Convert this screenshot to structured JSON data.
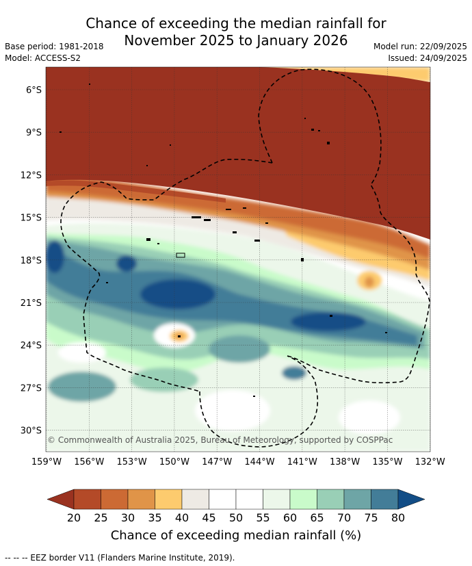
{
  "title": {
    "line1": "Chance of exceeding the median rainfall for",
    "line2": "November 2025 to January 2026"
  },
  "meta": {
    "base_period": "Base period: 1981-2018",
    "model": "Model: ACCESS-S2",
    "model_run": "Model run: 22/09/2025",
    "issued": "Issued: 24/09/2025"
  },
  "map": {
    "lat_labels": [
      "6°S",
      "9°S",
      "12°S",
      "15°S",
      "18°S",
      "21°S",
      "24°S",
      "27°S",
      "30°S"
    ],
    "lon_labels": [
      "159°W",
      "156°W",
      "153°W",
      "150°W",
      "147°W",
      "144°W",
      "141°W",
      "138°W",
      "135°W",
      "132°W"
    ],
    "copyright": "© Commonwealth of Australia 2025, Bureau of Meteorology, supported by COSPPac"
  },
  "colorbar": {
    "ticks": [
      "20",
      "25",
      "30",
      "35",
      "40",
      "45",
      "50",
      "55",
      "60",
      "65",
      "70",
      "75",
      "80"
    ],
    "colors": [
      "#9a3220",
      "#b44a28",
      "#cc6a34",
      "#e09448",
      "#fdcb6e",
      "#eeeae4",
      "#ffffff",
      "#ffffff",
      "#ecf7ea",
      "#c9fbca",
      "#99cfb6",
      "#6ea5a6",
      "#437d98",
      "#124d86"
    ],
    "label": "Chance of exceeding median rainfall (%)"
  },
  "footnote": "--  --  -- EEZ border V11 (Flanders Marine Institute, 2019)."
}
